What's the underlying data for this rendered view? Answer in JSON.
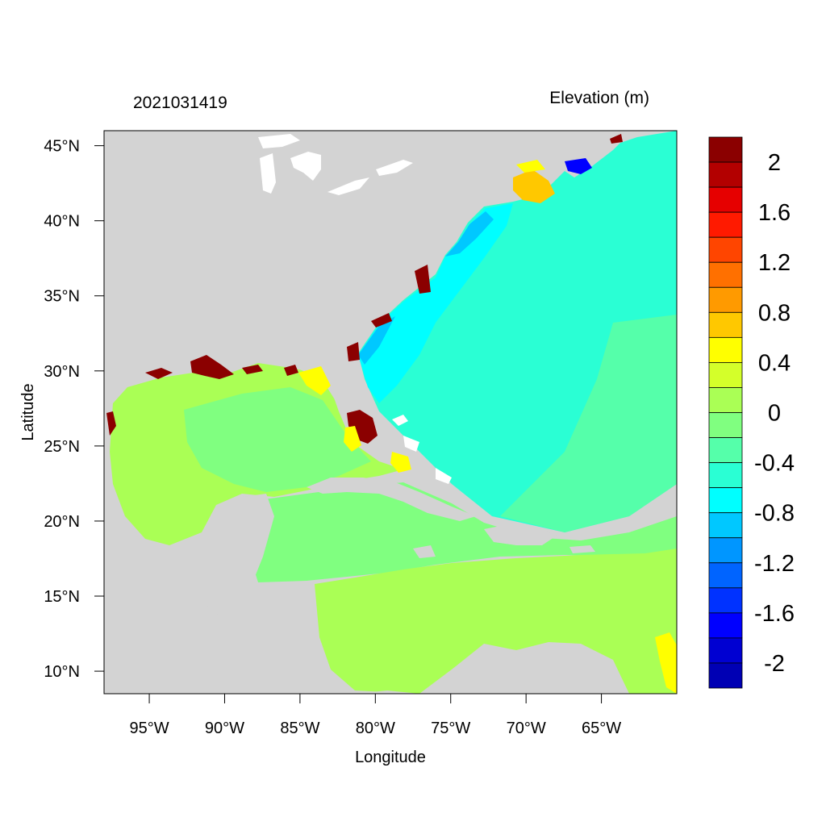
{
  "title_left": "2021031419",
  "title_right": "Elevation (m)",
  "xlabel": "Longitude",
  "ylabel": "Latitude",
  "x_ticks": [
    {
      "value": -95,
      "label": "95°W"
    },
    {
      "value": -90,
      "label": "90°W"
    },
    {
      "value": -85,
      "label": "85°W"
    },
    {
      "value": -80,
      "label": "80°W"
    },
    {
      "value": -75,
      "label": "75°W"
    },
    {
      "value": -70,
      "label": "70°W"
    },
    {
      "value": -65,
      "label": "65°W"
    }
  ],
  "y_ticks": [
    {
      "value": 45,
      "label": "45°N"
    },
    {
      "value": 40,
      "label": "40°N"
    },
    {
      "value": 35,
      "label": "35°N"
    },
    {
      "value": 30,
      "label": "30°N"
    },
    {
      "value": 25,
      "label": "25°N"
    },
    {
      "value": 20,
      "label": "20°N"
    },
    {
      "value": 15,
      "label": "15°N"
    },
    {
      "value": 10,
      "label": "10°N"
    }
  ],
  "lon_range": [
    -98,
    -60
  ],
  "lat_range": [
    8.5,
    46
  ],
  "colorbar": {
    "bins": [
      {
        "min": 2.0,
        "max": 2.2,
        "color": "#8b0000"
      },
      {
        "min": 1.8,
        "max": 2.0,
        "color": "#b30000"
      },
      {
        "min": 1.6,
        "max": 1.8,
        "color": "#e60000"
      },
      {
        "min": 1.4,
        "max": 1.6,
        "color": "#ff1a00"
      },
      {
        "min": 1.2,
        "max": 1.4,
        "color": "#ff4500"
      },
      {
        "min": 1.0,
        "max": 1.2,
        "color": "#ff7000"
      },
      {
        "min": 0.8,
        "max": 1.0,
        "color": "#ff9a00"
      },
      {
        "min": 0.6,
        "max": 0.8,
        "color": "#ffc800"
      },
      {
        "min": 0.4,
        "max": 0.6,
        "color": "#ffff00"
      },
      {
        "min": 0.2,
        "max": 0.4,
        "color": "#d4ff2a"
      },
      {
        "min": 0.0,
        "max": 0.2,
        "color": "#aaff55"
      },
      {
        "min": -0.2,
        "max": 0.0,
        "color": "#80ff80"
      },
      {
        "min": -0.4,
        "max": -0.2,
        "color": "#55ffaa"
      },
      {
        "min": -0.6,
        "max": -0.4,
        "color": "#2affd4"
      },
      {
        "min": -0.8,
        "max": -0.6,
        "color": "#00ffff"
      },
      {
        "min": -1.0,
        "max": -0.8,
        "color": "#00c8ff"
      },
      {
        "min": -1.2,
        "max": -1.0,
        "color": "#0096ff"
      },
      {
        "min": -1.4,
        "max": -1.2,
        "color": "#0064ff"
      },
      {
        "min": -1.6,
        "max": -1.4,
        "color": "#0032ff"
      },
      {
        "min": -1.8,
        "max": -1.6,
        "color": "#0000ff"
      },
      {
        "min": -2.0,
        "max": -1.8,
        "color": "#0000d2"
      },
      {
        "min": -2.2,
        "max": -2.0,
        "color": "#0000b4"
      }
    ],
    "labels": [
      "2",
      "1.6",
      "1.2",
      "0.8",
      "0.4",
      "0",
      "-0.4",
      "-0.8",
      "-1.2",
      "-1.6",
      "-2"
    ]
  },
  "colors": {
    "land": "#d3d3d3",
    "water_white": "#ffffff",
    "gulf": "#aaff55",
    "caribbean_north": "#80ff80",
    "caribbean_south": "#aaff55",
    "atlantic_open": "#2affd4",
    "atlantic_shelf": "#00ffff",
    "atlantic_deep_shelf": "#00c8ff",
    "atlantic_south": "#55ffaa",
    "surge_high": "#8b0000",
    "surge_med": "#ffff00",
    "surge_low": "#ffc800",
    "bay_low": "#0000ff"
  }
}
